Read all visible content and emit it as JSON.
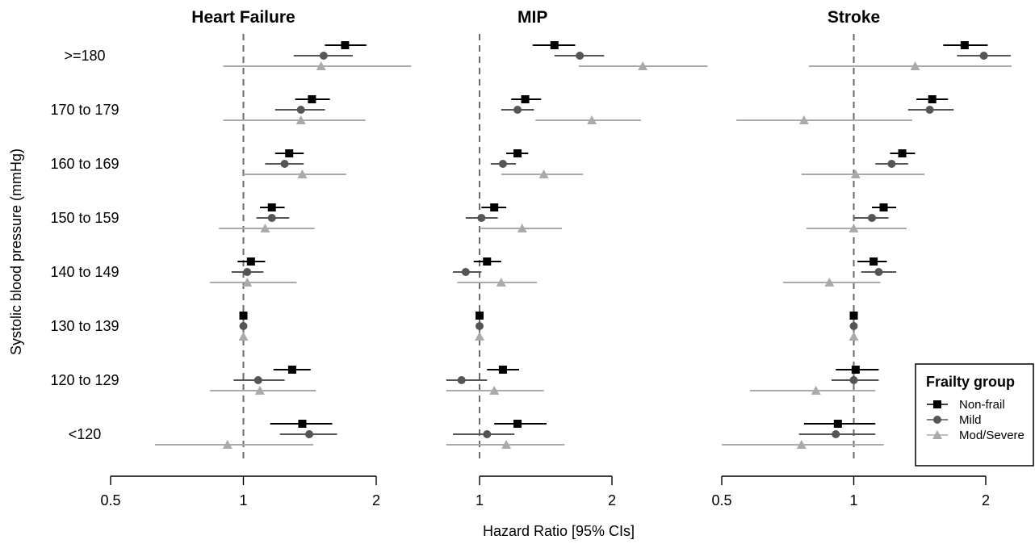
{
  "chart_data": {
    "type": "forest",
    "y_axis_title": "Systolic blood pressure (mmHg)",
    "x_axis_title": "Hazard Ratio [95% CIs]",
    "x_scale": "log",
    "reference_line": 1,
    "rows": [
      ">=180",
      "170 to 179",
      "160 to 169",
      "150 to 159",
      "140 to 149",
      "130 to 139",
      "120 to 129",
      "<120"
    ],
    "legend": {
      "title": "Frailty group",
      "position": "bottom-right",
      "groups": [
        {
          "name": "Non-frail",
          "marker": "square",
          "color": "#000000"
        },
        {
          "name": "Mild",
          "marker": "circle",
          "color": "#555555"
        },
        {
          "name": "Mod/Severe",
          "marker": "triangle",
          "color": "#aaaaaa"
        }
      ]
    },
    "panels": [
      {
        "title": "Heart Failure",
        "xlim": [
          0.5,
          2
        ],
        "ticks": [
          {
            "value": 0.5,
            "label": "0.5"
          },
          {
            "value": 1,
            "label": "1"
          },
          {
            "value": 2,
            "label": "2"
          }
        ],
        "estimates": [
          {
            "row": ">=180",
            "group": "Non-frail",
            "hr": 1.7,
            "lo": 1.53,
            "hi": 1.9
          },
          {
            "row": ">=180",
            "group": "Mild",
            "hr": 1.52,
            "lo": 1.3,
            "hi": 1.77
          },
          {
            "row": ">=180",
            "group": "Mod/Severe",
            "hr": 1.5,
            "lo": 0.9,
            "hi": 2.4
          },
          {
            "row": "170 to 179",
            "group": "Non-frail",
            "hr": 1.43,
            "lo": 1.31,
            "hi": 1.57
          },
          {
            "row": "170 to 179",
            "group": "Mild",
            "hr": 1.35,
            "lo": 1.18,
            "hi": 1.53
          },
          {
            "row": "170 to 179",
            "group": "Mod/Severe",
            "hr": 1.35,
            "lo": 0.9,
            "hi": 1.89
          },
          {
            "row": "160 to 169",
            "group": "Non-frail",
            "hr": 1.27,
            "lo": 1.18,
            "hi": 1.37
          },
          {
            "row": "160 to 169",
            "group": "Mild",
            "hr": 1.24,
            "lo": 1.12,
            "hi": 1.37
          },
          {
            "row": "160 to 169",
            "group": "Mod/Severe",
            "hr": 1.36,
            "lo": 1.0,
            "hi": 1.71
          },
          {
            "row": "150 to 159",
            "group": "Non-frail",
            "hr": 1.16,
            "lo": 1.09,
            "hi": 1.24
          },
          {
            "row": "150 to 159",
            "group": "Mild",
            "hr": 1.16,
            "lo": 1.07,
            "hi": 1.27
          },
          {
            "row": "150 to 159",
            "group": "Mod/Severe",
            "hr": 1.12,
            "lo": 0.88,
            "hi": 1.45
          },
          {
            "row": "140 to 149",
            "group": "Non-frail",
            "hr": 1.04,
            "lo": 0.97,
            "hi": 1.12
          },
          {
            "row": "140 to 149",
            "group": "Mild",
            "hr": 1.02,
            "lo": 0.94,
            "hi": 1.11
          },
          {
            "row": "140 to 149",
            "group": "Mod/Severe",
            "hr": 1.02,
            "lo": 0.84,
            "hi": 1.32
          },
          {
            "row": "130 to 139",
            "group": "Non-frail",
            "hr": 1.0,
            "lo": 1.0,
            "hi": 1.0
          },
          {
            "row": "130 to 139",
            "group": "Mild",
            "hr": 1.0,
            "lo": 1.0,
            "hi": 1.0
          },
          {
            "row": "130 to 139",
            "group": "Mod/Severe",
            "hr": 1.0,
            "lo": 1.0,
            "hi": 1.0
          },
          {
            "row": "120 to 129",
            "group": "Non-frail",
            "hr": 1.29,
            "lo": 1.17,
            "hi": 1.42
          },
          {
            "row": "120 to 129",
            "group": "Mild",
            "hr": 1.08,
            "lo": 0.95,
            "hi": 1.24
          },
          {
            "row": "120 to 129",
            "group": "Mod/Severe",
            "hr": 1.09,
            "lo": 0.84,
            "hi": 1.46
          },
          {
            "row": "<120",
            "group": "Non-frail",
            "hr": 1.36,
            "lo": 1.15,
            "hi": 1.59
          },
          {
            "row": "<120",
            "group": "Mild",
            "hr": 1.41,
            "lo": 1.21,
            "hi": 1.63
          },
          {
            "row": "<120",
            "group": "Mod/Severe",
            "hr": 0.92,
            "lo": 0.63,
            "hi": 1.44
          }
        ]
      },
      {
        "title": "MIP",
        "xlim": [
          1,
          2
        ],
        "ticks": [
          {
            "value": 1,
            "label": "1"
          },
          {
            "value": 2,
            "label": "2"
          }
        ],
        "estimates": [
          {
            "row": ">=180",
            "group": "Non-frail",
            "hr": 1.48,
            "lo": 1.32,
            "hi": 1.65
          },
          {
            "row": ">=180",
            "group": "Mild",
            "hr": 1.69,
            "lo": 1.48,
            "hi": 1.92
          },
          {
            "row": ">=180",
            "group": "Mod/Severe",
            "hr": 2.35,
            "lo": 1.68,
            "hi": 3.3
          },
          {
            "row": "170 to 179",
            "group": "Non-frail",
            "hr": 1.27,
            "lo": 1.18,
            "hi": 1.38
          },
          {
            "row": "170 to 179",
            "group": "Mild",
            "hr": 1.22,
            "lo": 1.12,
            "hi": 1.33
          },
          {
            "row": "170 to 179",
            "group": "Mod/Severe",
            "hr": 1.8,
            "lo": 1.34,
            "hi": 2.33
          },
          {
            "row": "160 to 169",
            "group": "Non-frail",
            "hr": 1.22,
            "lo": 1.15,
            "hi": 1.29
          },
          {
            "row": "160 to 169",
            "group": "Mild",
            "hr": 1.13,
            "lo": 1.06,
            "hi": 1.21
          },
          {
            "row": "160 to 169",
            "group": "Mod/Severe",
            "hr": 1.4,
            "lo": 1.12,
            "hi": 1.72
          },
          {
            "row": "150 to 159",
            "group": "Non-frail",
            "hr": 1.08,
            "lo": 1.01,
            "hi": 1.15
          },
          {
            "row": "150 to 159",
            "group": "Mild",
            "hr": 1.01,
            "lo": 0.93,
            "hi": 1.1
          },
          {
            "row": "150 to 159",
            "group": "Mod/Severe",
            "hr": 1.25,
            "lo": 1.0,
            "hi": 1.54
          },
          {
            "row": "140 to 149",
            "group": "Non-frail",
            "hr": 1.04,
            "lo": 0.97,
            "hi": 1.12
          },
          {
            "row": "140 to 149",
            "group": "Mild",
            "hr": 0.93,
            "lo": 0.87,
            "hi": 1.01
          },
          {
            "row": "140 to 149",
            "group": "Mod/Severe",
            "hr": 1.12,
            "lo": 0.89,
            "hi": 1.35
          },
          {
            "row": "130 to 139",
            "group": "Non-frail",
            "hr": 1.0,
            "lo": 1.0,
            "hi": 1.0
          },
          {
            "row": "130 to 139",
            "group": "Mild",
            "hr": 1.0,
            "lo": 1.0,
            "hi": 1.0
          },
          {
            "row": "130 to 139",
            "group": "Mod/Severe",
            "hr": 1.0,
            "lo": 1.0,
            "hi": 1.0
          },
          {
            "row": "120 to 129",
            "group": "Non-frail",
            "hr": 1.13,
            "lo": 1.04,
            "hi": 1.23
          },
          {
            "row": "120 to 129",
            "group": "Mild",
            "hr": 0.91,
            "lo": 0.84,
            "hi": 1.04
          },
          {
            "row": "120 to 129",
            "group": "Mod/Severe",
            "hr": 1.08,
            "lo": 0.84,
            "hi": 1.4
          },
          {
            "row": "<120",
            "group": "Non-frail",
            "hr": 1.22,
            "lo": 1.08,
            "hi": 1.42
          },
          {
            "row": "<120",
            "group": "Mild",
            "hr": 1.04,
            "lo": 0.87,
            "hi": 1.2
          },
          {
            "row": "<120",
            "group": "Mod/Severe",
            "hr": 1.15,
            "lo": 0.84,
            "hi": 1.56
          }
        ]
      },
      {
        "title": "Stroke",
        "xlim": [
          0.5,
          2
        ],
        "ticks": [
          {
            "value": 0.5,
            "label": "0.5"
          },
          {
            "value": 1,
            "label": "1"
          },
          {
            "value": 2,
            "label": "2"
          }
        ],
        "estimates": [
          {
            "row": ">=180",
            "group": "Non-frail",
            "hr": 1.79,
            "lo": 1.6,
            "hi": 2.02
          },
          {
            "row": ">=180",
            "group": "Mild",
            "hr": 1.98,
            "lo": 1.72,
            "hi": 2.28
          },
          {
            "row": ">=180",
            "group": "Mod/Severe",
            "hr": 1.38,
            "lo": 0.79,
            "hi": 2.29
          },
          {
            "row": "170 to 179",
            "group": "Non-frail",
            "hr": 1.51,
            "lo": 1.39,
            "hi": 1.64
          },
          {
            "row": "170 to 179",
            "group": "Mild",
            "hr": 1.49,
            "lo": 1.33,
            "hi": 1.69
          },
          {
            "row": "170 to 179",
            "group": "Mod/Severe",
            "hr": 0.77,
            "lo": 0.54,
            "hi": 1.36
          },
          {
            "row": "160 to 169",
            "group": "Non-frail",
            "hr": 1.29,
            "lo": 1.21,
            "hi": 1.38
          },
          {
            "row": "160 to 169",
            "group": "Mild",
            "hr": 1.22,
            "lo": 1.12,
            "hi": 1.33
          },
          {
            "row": "160 to 169",
            "group": "Mod/Severe",
            "hr": 1.01,
            "lo": 0.76,
            "hi": 1.45
          },
          {
            "row": "150 to 159",
            "group": "Non-frail",
            "hr": 1.17,
            "lo": 1.1,
            "hi": 1.25
          },
          {
            "row": "150 to 159",
            "group": "Mild",
            "hr": 1.1,
            "lo": 1.0,
            "hi": 1.2
          },
          {
            "row": "150 to 159",
            "group": "Mod/Severe",
            "hr": 1.0,
            "lo": 0.78,
            "hi": 1.32
          },
          {
            "row": "140 to 149",
            "group": "Non-frail",
            "hr": 1.11,
            "lo": 1.02,
            "hi": 1.19
          },
          {
            "row": "140 to 149",
            "group": "Mild",
            "hr": 1.14,
            "lo": 1.04,
            "hi": 1.25
          },
          {
            "row": "140 to 149",
            "group": "Mod/Severe",
            "hr": 0.88,
            "lo": 0.69,
            "hi": 1.15
          },
          {
            "row": "130 to 139",
            "group": "Non-frail",
            "hr": 1.0,
            "lo": 1.0,
            "hi": 1.0
          },
          {
            "row": "130 to 139",
            "group": "Mild",
            "hr": 1.0,
            "lo": 1.0,
            "hi": 1.0
          },
          {
            "row": "130 to 139",
            "group": "Mod/Severe",
            "hr": 1.0,
            "lo": 1.0,
            "hi": 1.0
          },
          {
            "row": "120 to 129",
            "group": "Non-frail",
            "hr": 1.01,
            "lo": 0.91,
            "hi": 1.14
          },
          {
            "row": "120 to 129",
            "group": "Mild",
            "hr": 1.0,
            "lo": 0.89,
            "hi": 1.14
          },
          {
            "row": "120 to 129",
            "group": "Mod/Severe",
            "hr": 0.82,
            "lo": 0.58,
            "hi": 1.12
          },
          {
            "row": "<120",
            "group": "Non-frail",
            "hr": 0.92,
            "lo": 0.77,
            "hi": 1.12
          },
          {
            "row": "<120",
            "group": "Mild",
            "hr": 0.91,
            "lo": 0.75,
            "hi": 1.12
          },
          {
            "row": "<120",
            "group": "Mod/Severe",
            "hr": 0.76,
            "lo": 0.5,
            "hi": 1.17
          }
        ]
      }
    ]
  }
}
